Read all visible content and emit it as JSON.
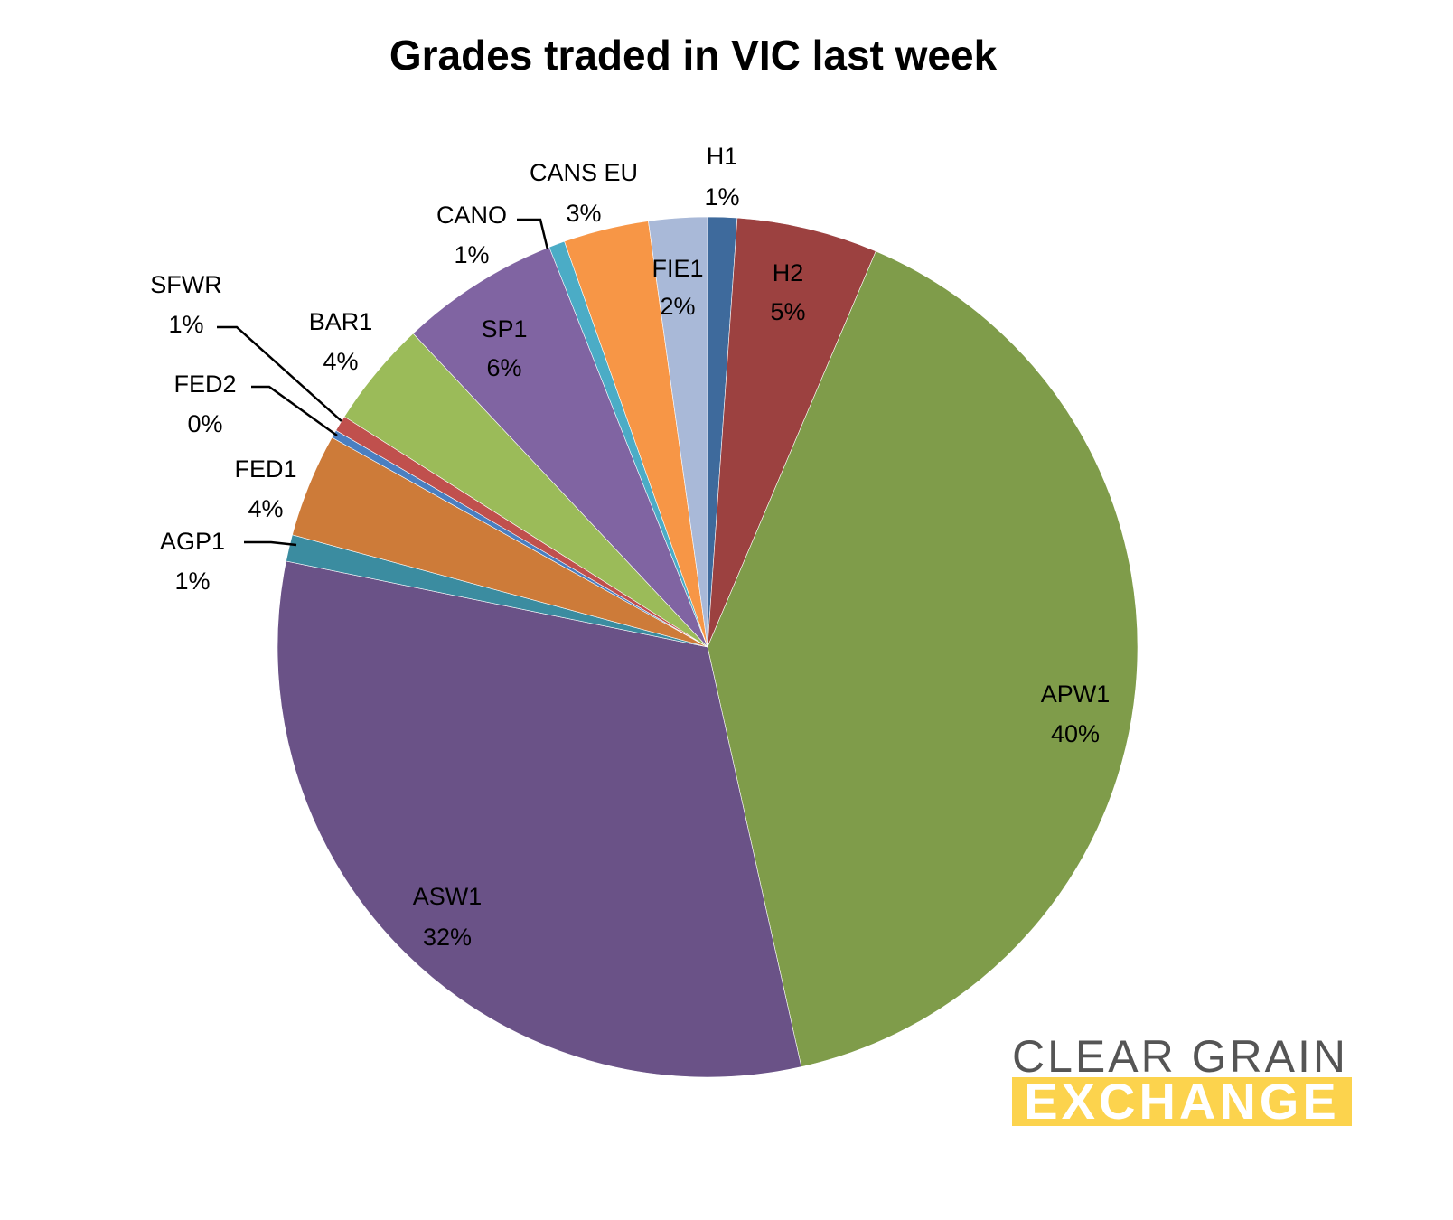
{
  "chart_data": {
    "type": "pie",
    "title": "Grades traded in VIC last week",
    "start_angle": "12 o'clock, clockwise",
    "slices": [
      {
        "label": "H1",
        "display": "1%",
        "value": 1.1,
        "color": "#3e6a9c"
      },
      {
        "label": "H2",
        "display": "5%",
        "value": 5.3,
        "color": "#9c4140"
      },
      {
        "label": "APW1",
        "display": "40%",
        "value": 40.1,
        "color": "#7f9c4a"
      },
      {
        "label": "ASW1",
        "display": "32%",
        "value": 31.7,
        "color": "#6a5287"
      },
      {
        "label": "AGP1",
        "display": "1%",
        "value": 1.0,
        "color": "#3b8ca0"
      },
      {
        "label": "FED1",
        "display": "4%",
        "value": 3.9,
        "color": "#cd7b39"
      },
      {
        "label": "FED2",
        "display": "0%",
        "value": 0.3,
        "color": "#4a7fc1"
      },
      {
        "label": "SFWR",
        "display": "1%",
        "value": 0.6,
        "color": "#c0504d"
      },
      {
        "label": "BAR1",
        "display": "4%",
        "value": 4.0,
        "color": "#9bbb59"
      },
      {
        "label": "SP1",
        "display": "6%",
        "value": 6.0,
        "color": "#8064a2"
      },
      {
        "label": "CANO",
        "display": "1%",
        "value": 0.6,
        "color": "#4bacc6"
      },
      {
        "label": "CANS EU",
        "display": "3%",
        "value": 3.2,
        "color": "#f79646"
      },
      {
        "label": "FIE1",
        "display": "2%",
        "value": 2.2,
        "color": "#a9b9d8"
      }
    ]
  },
  "logo": {
    "line1": "CLEAR GRAIN",
    "line2": "EXCHANGE"
  }
}
